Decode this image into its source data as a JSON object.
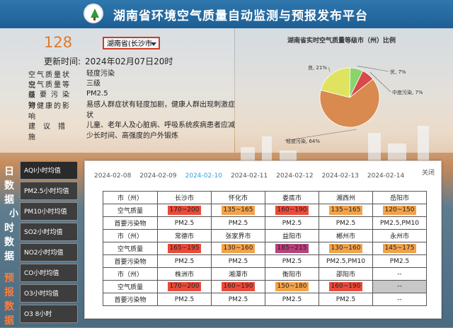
{
  "header": {
    "title": "湖南省环境空气质量自动监测与预报发布平台"
  },
  "summary": {
    "aqi": "128",
    "city_select": "湖南省(长沙市",
    "update_label": "更新时间:",
    "update_time": "2024年02月07日20时",
    "rows": [
      {
        "label": "空气质量状况",
        "value": "轻度污染"
      },
      {
        "label": "空气质量等级",
        "value": "三级"
      },
      {
        "label": "首要污染物",
        "value": "PM2.5"
      },
      {
        "label": "对健康的影响",
        "value": "易感人群症状有轻度加剧，健康人群出现刺激症状"
      },
      {
        "label": "建议措施",
        "value": "儿童、老年人及心脏病、呼吸系统疾病患者应减少长时间、高强度的户外锻炼"
      }
    ]
  },
  "chart_data": {
    "type": "pie",
    "title": "湖南省实时空气质量等级市（州）比例",
    "slices": [
      {
        "label": "良, 21%",
        "value": 21,
        "color": "#dfe35f"
      },
      {
        "label": "优, 7%",
        "value": 7,
        "color": "#8bd46c"
      },
      {
        "label": "中度污染, 7%",
        "value": 7,
        "color": "#d84a4a"
      },
      {
        "label": "轻度污染, 64%",
        "value": 64,
        "color": "#d98a4e"
      }
    ]
  },
  "sidebar": {
    "vertical_1": [
      "日",
      "数",
      "据"
    ],
    "vertical_2": [
      "小",
      "时",
      "数",
      "据"
    ],
    "vertical_3": [
      "预",
      "报",
      "数",
      "据"
    ],
    "items": [
      "AQI小时均值",
      "PM2.5小时均值",
      "PM10小时均值",
      "SO2小时均值",
      "NO2小时均值",
      "CO小时均值",
      "O3小时均值",
      "O3 8小时"
    ]
  },
  "popup": {
    "dates": [
      "2024-02-08",
      "2024-02-09",
      "2024-02-10",
      "2024-02-11",
      "2024-02-12",
      "2024-02-13",
      "2024-02-14"
    ],
    "selected_date": "2024-02-10",
    "close_label": "关闭",
    "row_labels": [
      "市（州）",
      "空气质量",
      "首要污染物"
    ],
    "groups": [
      {
        "cities": [
          "长沙市",
          "怀化市",
          "娄底市",
          "湘西州",
          "岳阳市"
        ],
        "aqi": [
          "170~200",
          "135~165",
          "160~190",
          "135~165",
          "120~150"
        ],
        "colors": [
          "#e94a3a",
          "#f2a24a",
          "#e94a3a",
          "#f2a24a",
          "#f2a24a"
        ],
        "pollutant": [
          "PM2.5",
          "PM2.5",
          "PM2.5",
          "PM2.5",
          "PM2.5,PM10"
        ]
      },
      {
        "cities": [
          "常德市",
          "张家界市",
          "益阳市",
          "郴州市",
          "永州市"
        ],
        "aqi": [
          "165~195",
          "130~160",
          "185~215",
          "130~160",
          "145~175"
        ],
        "colors": [
          "#e94a3a",
          "#f2a24a",
          "#b8417a",
          "#f2a24a",
          "#f2a24a"
        ],
        "pollutant": [
          "PM2.5",
          "PM2.5",
          "PM2.5",
          "PM2.5,PM10",
          "PM2.5"
        ]
      },
      {
        "cities": [
          "株洲市",
          "湘潭市",
          "衡阳市",
          "邵阳市",
          "--"
        ],
        "aqi": [
          "170~200",
          "160~190",
          "150~180",
          "160~190",
          "--"
        ],
        "colors": [
          "#e94a3a",
          "#e94a3a",
          "#f2a24a",
          "#e94a3a",
          "#c8c8c8"
        ],
        "pollutant": [
          "PM2.5",
          "PM2.5",
          "PM2.5",
          "PM2.5",
          "--"
        ]
      }
    ]
  }
}
